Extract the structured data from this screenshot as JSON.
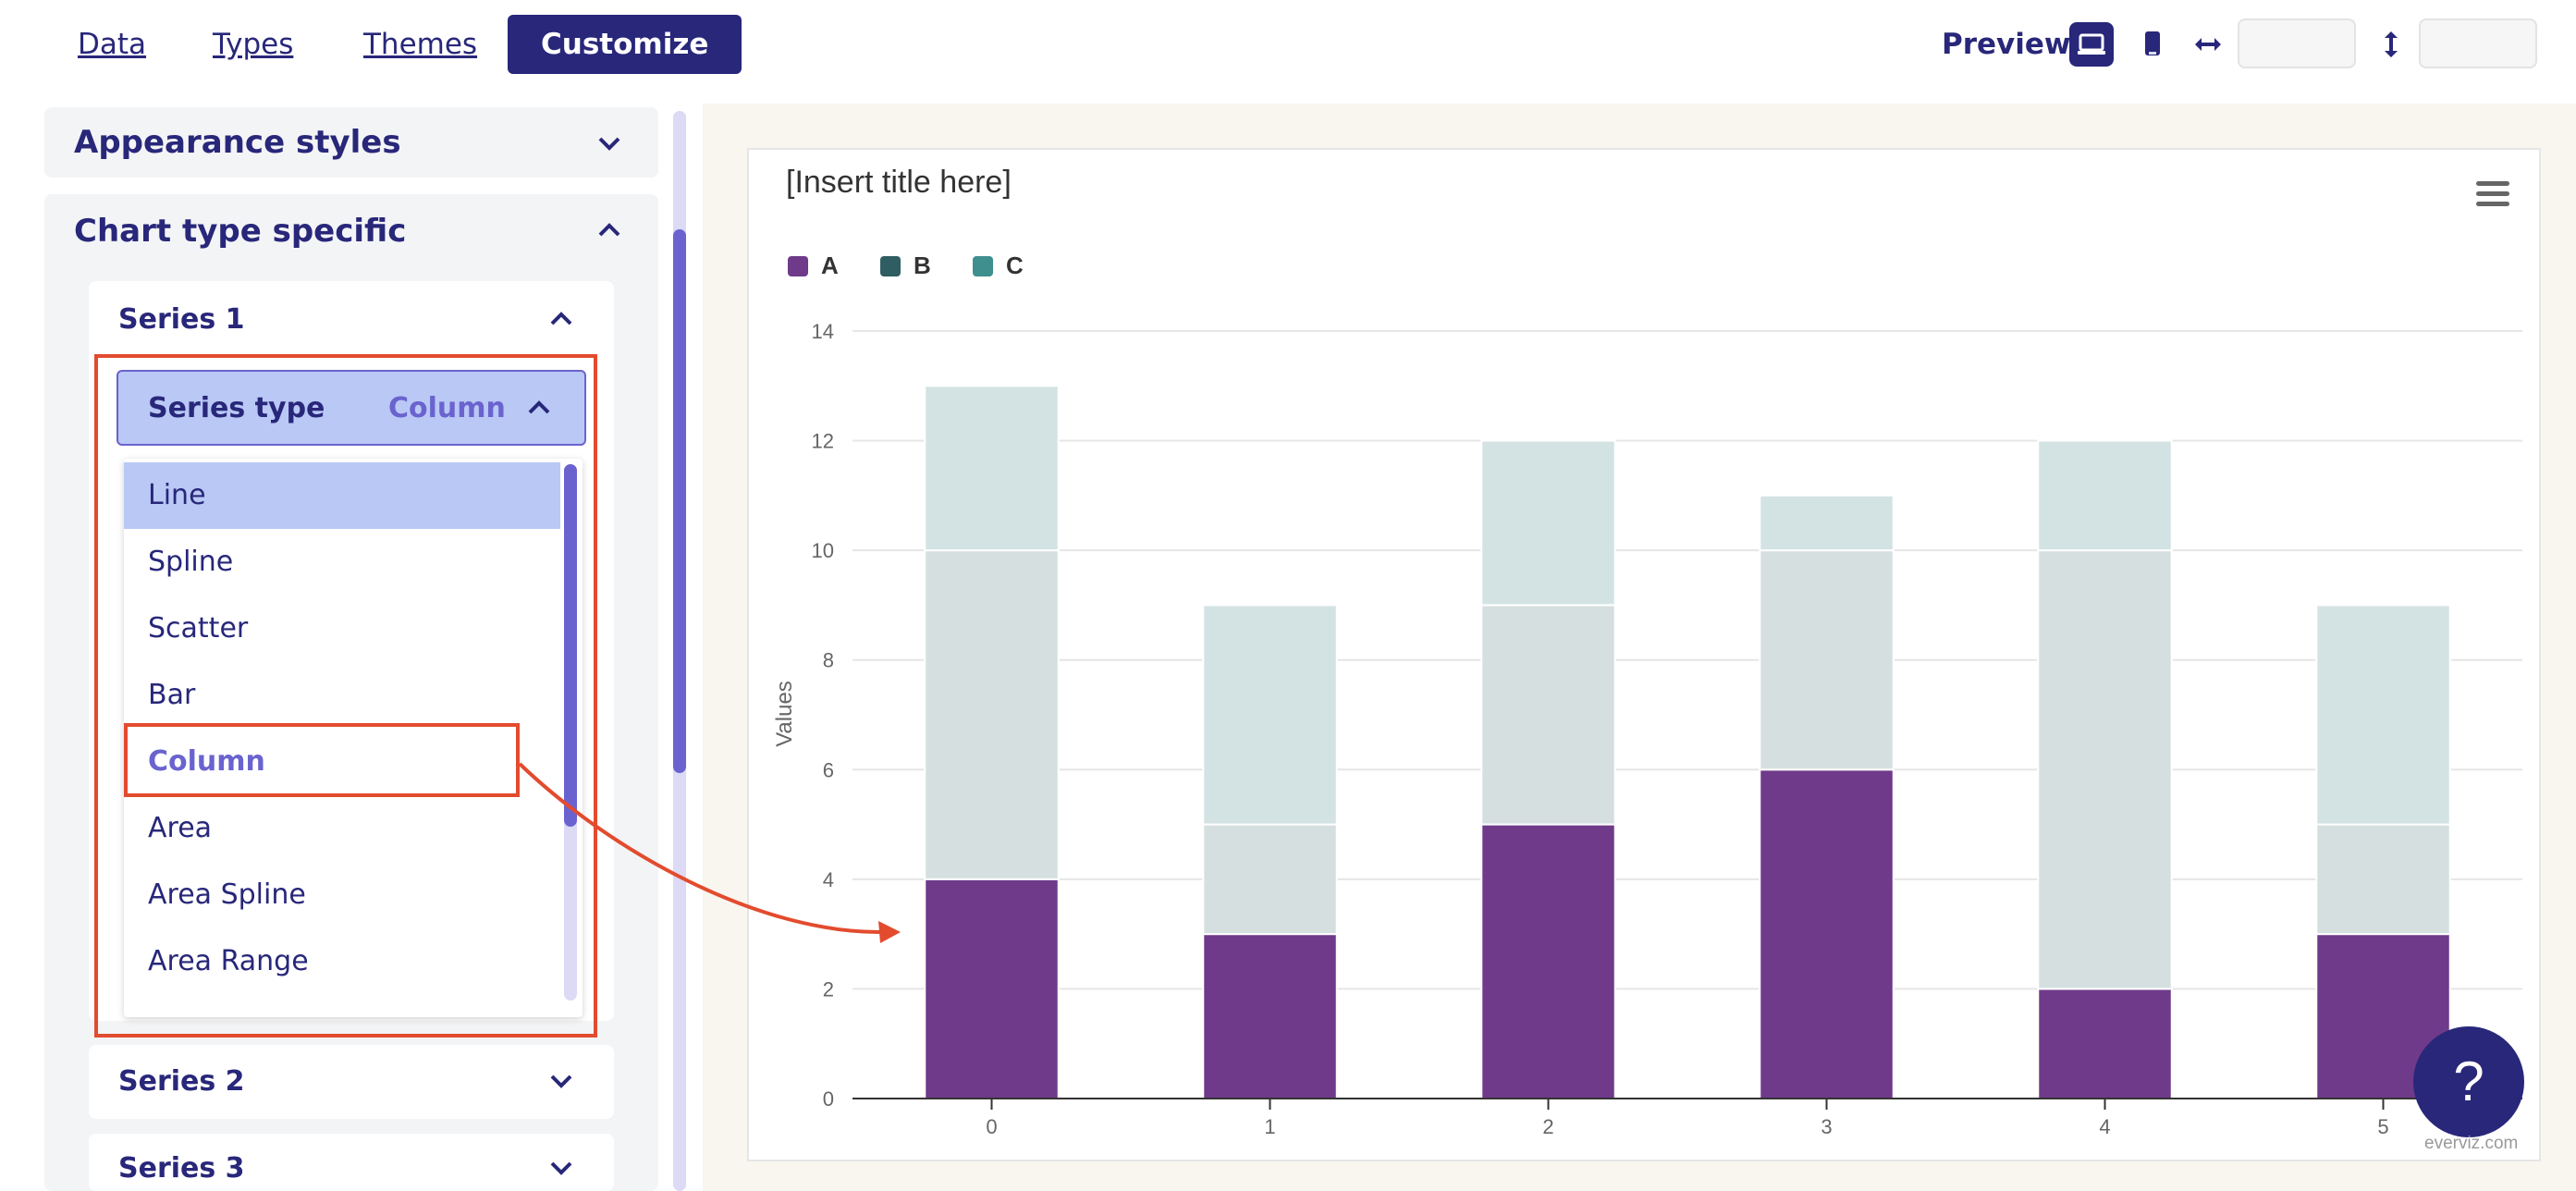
{
  "nav": {
    "tabs": [
      {
        "label": "Data"
      },
      {
        "label": "Types"
      },
      {
        "label": "Themes"
      },
      {
        "label": "Customize"
      }
    ],
    "active_tab": "Customize"
  },
  "preview": {
    "label": "Preview:",
    "icons": [
      "desktop-icon",
      "mobile-icon",
      "width-arrows-icon",
      "height-arrows-icon"
    ],
    "width_value": "",
    "height_value": ""
  },
  "sidebar": {
    "appearance_title": "Appearance styles",
    "chart_type_title": "Chart type specific",
    "series": [
      {
        "title": "Series 1"
      },
      {
        "title": "Series 2"
      },
      {
        "title": "Series 3"
      }
    ],
    "series_type": {
      "label": "Series type",
      "value": "Column",
      "options": [
        "Line",
        "Spline",
        "Scatter",
        "Bar",
        "Column",
        "Area",
        "Area Spline",
        "Area Range"
      ],
      "hovered": "Line"
    }
  },
  "chart": {
    "title": "[Insert title here]",
    "credit": "everviz.com",
    "help_label": "?"
  },
  "colors": {
    "accent": "#28277a",
    "highlight": "#6a63cf",
    "annotation": "#e34b2e",
    "series_a": "#6f3a8a",
    "series_b": "#d6dfe0",
    "series_c": "#d3e3e4"
  },
  "chart_data": {
    "type": "bar",
    "stacked": true,
    "title": "[Insert title here]",
    "xlabel": "",
    "ylabel": "Values",
    "categories": [
      "0",
      "1",
      "2",
      "3",
      "4",
      "5"
    ],
    "ylim": [
      0,
      14
    ],
    "yticks": [
      0,
      2,
      4,
      6,
      8,
      10,
      12,
      14
    ],
    "grid": true,
    "legend": "top-left",
    "series": [
      {
        "name": "A",
        "values": [
          4,
          3,
          5,
          6,
          2,
          3
        ],
        "color": "#6f3a8a",
        "legend_color": "#6f3a8a"
      },
      {
        "name": "B",
        "values": [
          6,
          2,
          4,
          4,
          8,
          2
        ],
        "color": "#d6dfe0",
        "legend_color": "#2f5d62"
      },
      {
        "name": "C",
        "values": [
          3,
          4,
          3,
          1,
          2,
          4
        ],
        "color": "#d3e3e4",
        "legend_color": "#3f8f8f"
      }
    ]
  }
}
